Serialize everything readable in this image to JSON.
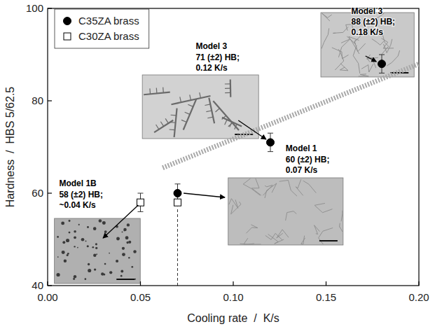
{
  "chart_data": {
    "type": "scatter",
    "x_label": "Cooling rate  /  K/s",
    "y_label": "Hardness  /  HBS 5/62.5",
    "xlim": [
      0,
      0.2
    ],
    "ylim": [
      40,
      100
    ],
    "xticks": [
      {
        "value": 0,
        "label": "0.00"
      },
      {
        "value": 0.05,
        "label": "0.05"
      },
      {
        "value": 0.1,
        "label": "0.10"
      },
      {
        "value": 0.15,
        "label": "0.15"
      },
      {
        "value": 0.2,
        "label": "0.20"
      }
    ],
    "yticks": [
      40,
      60,
      80,
      100
    ],
    "grid": false,
    "legend": "upper left",
    "series": [
      {
        "name": "C35ZA brass",
        "color": "#000000",
        "marker": "circle",
        "x": [
          0.07,
          0.12,
          0.18
        ],
        "values": [
          60,
          71,
          88
        ],
        "errors": [
          2,
          2,
          2
        ]
      },
      {
        "name": "C30ZA brass",
        "color": "#000000",
        "marker": "open_square",
        "x": [
          0.05,
          0.07
        ],
        "values": [
          58,
          58
        ],
        "errors": [
          2,
          null
        ]
      },
      {
        "type": "line",
        "color": "#a8a8a8",
        "marker": "none",
        "line_style": "dotted",
        "x": [
          0.062,
          0.2
        ],
        "values": [
          65.5,
          88
        ]
      }
    ],
    "drop_line": {
      "x": 0.07,
      "y": [
        40,
        57
      ],
      "line_style": "dashed"
    },
    "annotations": [
      {
        "text": [
          "Model 3",
          "88 (±2) HB;",
          "0.18 K/s"
        ]
      },
      {
        "text": [
          "Model 3",
          "71 (±2) HB;",
          "0.12 K/s"
        ]
      },
      {
        "text": [
          "Model 1",
          "60 (±2) HB;",
          "0.07 K/s"
        ]
      },
      {
        "text": [
          "Model 1B",
          "58 (±2) HB;",
          "~0.04 K/s"
        ]
      }
    ]
  }
}
